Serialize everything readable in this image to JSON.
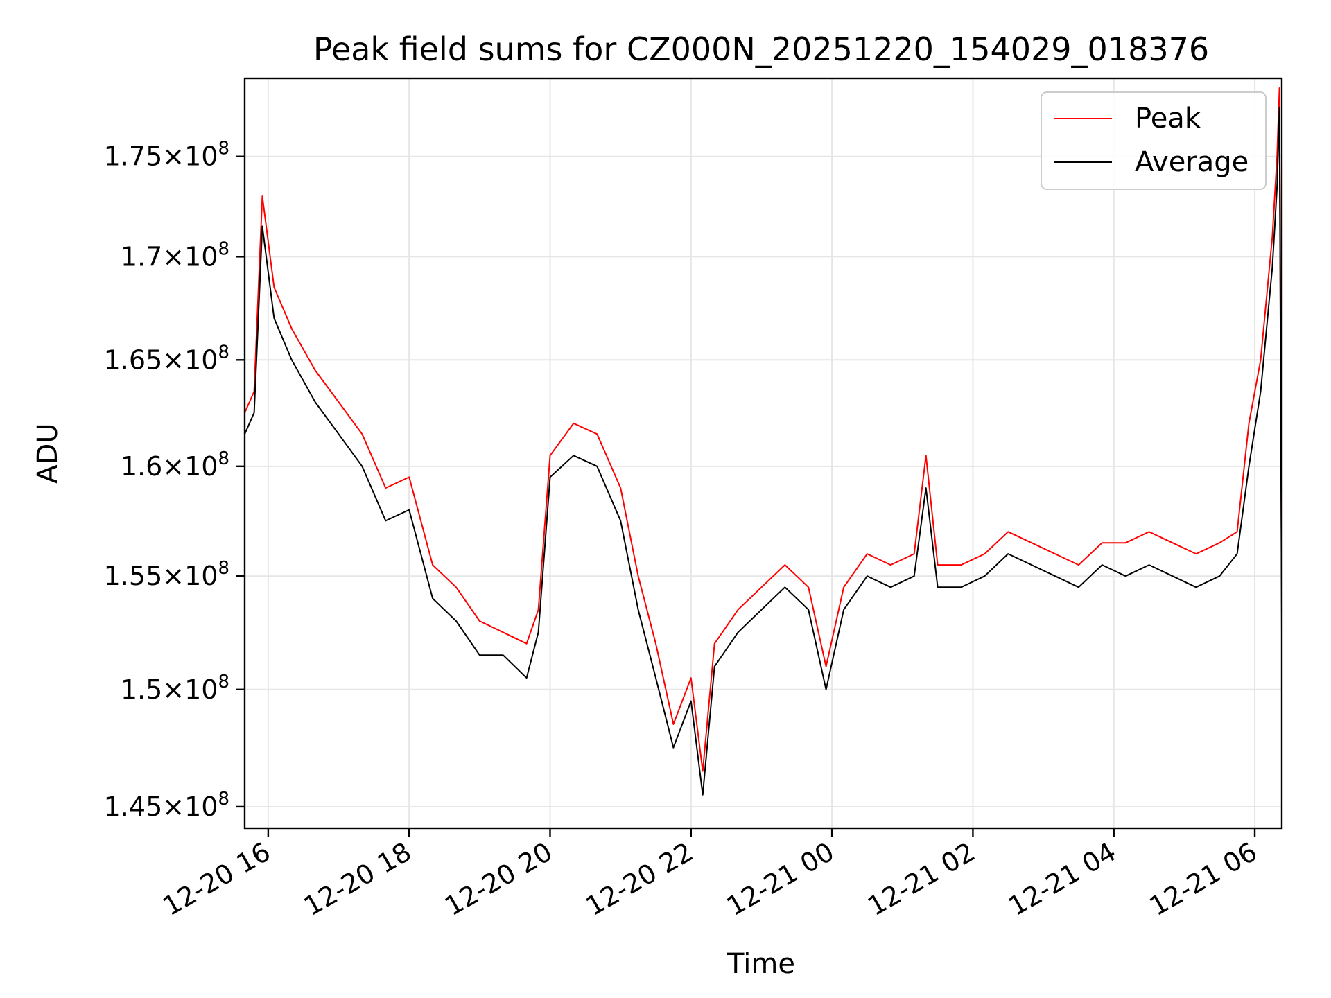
{
  "chart_data": {
    "type": "line",
    "title": "Peak field sums for CZ000N_20251220_154029_018376",
    "xlabel": "Time",
    "ylabel": "ADU",
    "x_range": [
      "2025-12-20 15:40",
      "2025-12-21 06:23"
    ],
    "ylim": [
      144100000,
      179000000
    ],
    "grid": true,
    "legend_position": "upper right",
    "x_ticks": [
      {
        "label": "12-20 16",
        "value": "2025-12-20 16:00"
      },
      {
        "label": "12-20 18",
        "value": "2025-12-20 18:00"
      },
      {
        "label": "12-20 20",
        "value": "2025-12-20 20:00"
      },
      {
        "label": "12-20 22",
        "value": "2025-12-20 22:00"
      },
      {
        "label": "12-21 00",
        "value": "2025-12-21 00:00"
      },
      {
        "label": "12-21 02",
        "value": "2025-12-21 02:00"
      },
      {
        "label": "12-21 04",
        "value": "2025-12-21 04:00"
      },
      {
        "label": "12-21 06",
        "value": "2025-12-21 06:00"
      }
    ],
    "y_ticks": [
      {
        "mantissa": "1.45",
        "exponent": "8",
        "value": 145000000
      },
      {
        "mantissa": "1.5",
        "exponent": "8",
        "value": 150000000
      },
      {
        "mantissa": "1.55",
        "exponent": "8",
        "value": 155000000
      },
      {
        "mantissa": "1.6",
        "exponent": "8",
        "value": 160000000
      },
      {
        "mantissa": "1.65",
        "exponent": "8",
        "value": 165000000
      },
      {
        "mantissa": "1.7",
        "exponent": "8",
        "value": 170000000
      },
      {
        "mantissa": "1.75",
        "exponent": "8",
        "value": 175000000
      }
    ],
    "series": [
      {
        "name": "Peak",
        "color": "#ff0000",
        "x": [
          "2025-12-20 15:40",
          "2025-12-20 15:48",
          "2025-12-20 15:55",
          "2025-12-20 16:05",
          "2025-12-20 16:20",
          "2025-12-20 16:40",
          "2025-12-20 17:00",
          "2025-12-20 17:20",
          "2025-12-20 17:40",
          "2025-12-20 18:00",
          "2025-12-20 18:20",
          "2025-12-20 18:40",
          "2025-12-20 19:00",
          "2025-12-20 19:20",
          "2025-12-20 19:40",
          "2025-12-20 19:50",
          "2025-12-20 20:00",
          "2025-12-20 20:20",
          "2025-12-20 20:40",
          "2025-12-20 21:00",
          "2025-12-20 21:15",
          "2025-12-20 21:30",
          "2025-12-20 21:45",
          "2025-12-20 22:00",
          "2025-12-20 22:10",
          "2025-12-20 22:20",
          "2025-12-20 22:40",
          "2025-12-20 23:00",
          "2025-12-20 23:20",
          "2025-12-20 23:40",
          "2025-12-20 23:55",
          "2025-12-21 00:10",
          "2025-12-21 00:30",
          "2025-12-21 00:50",
          "2025-12-21 01:10",
          "2025-12-21 01:20",
          "2025-12-21 01:30",
          "2025-12-21 01:50",
          "2025-12-21 02:10",
          "2025-12-21 02:30",
          "2025-12-21 02:50",
          "2025-12-21 03:10",
          "2025-12-21 03:30",
          "2025-12-21 03:50",
          "2025-12-21 04:10",
          "2025-12-21 04:30",
          "2025-12-21 04:50",
          "2025-12-21 05:10",
          "2025-12-21 05:30",
          "2025-12-21 05:45",
          "2025-12-21 05:55",
          "2025-12-21 06:05",
          "2025-12-21 06:15",
          "2025-12-21 06:19",
          "2025-12-21 06:21",
          "2025-12-21 06:23"
        ],
        "y": [
          162500000,
          163500000,
          173000000,
          168500000,
          166500000,
          164500000,
          163000000,
          161500000,
          159000000,
          159500000,
          155500000,
          154500000,
          153000000,
          152500000,
          152000000,
          153500000,
          160500000,
          162000000,
          161500000,
          159000000,
          155000000,
          152000000,
          148500000,
          150500000,
          146500000,
          152000000,
          153500000,
          154500000,
          155500000,
          154500000,
          151000000,
          154500000,
          156000000,
          155500000,
          156000000,
          160500000,
          155500000,
          155500000,
          156000000,
          157000000,
          156500000,
          156000000,
          155500000,
          156500000,
          156500000,
          157000000,
          156500000,
          156000000,
          156500000,
          157000000,
          162000000,
          165000000,
          171000000,
          175000000,
          178500000,
          153500000
        ]
      },
      {
        "name": "Average",
        "color": "#000000",
        "x": [
          "2025-12-20 15:40",
          "2025-12-20 15:48",
          "2025-12-20 15:55",
          "2025-12-20 16:05",
          "2025-12-20 16:20",
          "2025-12-20 16:40",
          "2025-12-20 17:00",
          "2025-12-20 17:20",
          "2025-12-20 17:40",
          "2025-12-20 18:00",
          "2025-12-20 18:20",
          "2025-12-20 18:40",
          "2025-12-20 19:00",
          "2025-12-20 19:20",
          "2025-12-20 19:40",
          "2025-12-20 19:50",
          "2025-12-20 20:00",
          "2025-12-20 20:20",
          "2025-12-20 20:40",
          "2025-12-20 21:00",
          "2025-12-20 21:15",
          "2025-12-20 21:30",
          "2025-12-20 21:45",
          "2025-12-20 22:00",
          "2025-12-20 22:10",
          "2025-12-20 22:20",
          "2025-12-20 22:40",
          "2025-12-20 23:00",
          "2025-12-20 23:20",
          "2025-12-20 23:40",
          "2025-12-20 23:55",
          "2025-12-21 00:10",
          "2025-12-21 00:30",
          "2025-12-21 00:50",
          "2025-12-21 01:10",
          "2025-12-21 01:20",
          "2025-12-21 01:30",
          "2025-12-21 01:50",
          "2025-12-21 02:10",
          "2025-12-21 02:30",
          "2025-12-21 02:50",
          "2025-12-21 03:10",
          "2025-12-21 03:30",
          "2025-12-21 03:50",
          "2025-12-21 04:10",
          "2025-12-21 04:30",
          "2025-12-21 04:50",
          "2025-12-21 05:10",
          "2025-12-21 05:30",
          "2025-12-21 05:45",
          "2025-12-21 05:55",
          "2025-12-21 06:05",
          "2025-12-21 06:15",
          "2025-12-21 06:19",
          "2025-12-21 06:21",
          "2025-12-21 06:23"
        ],
        "y": [
          161500000,
          162500000,
          171500000,
          167000000,
          165000000,
          163000000,
          161500000,
          160000000,
          157500000,
          158000000,
          154000000,
          153000000,
          151500000,
          151500000,
          150500000,
          152500000,
          159500000,
          160500000,
          160000000,
          157500000,
          153500000,
          150500000,
          147500000,
          149500000,
          145500000,
          151000000,
          152500000,
          153500000,
          154500000,
          153500000,
          150000000,
          153500000,
          155000000,
          154500000,
          155000000,
          159000000,
          154500000,
          154500000,
          155000000,
          156000000,
          155500000,
          155000000,
          154500000,
          155500000,
          155000000,
          155500000,
          155000000,
          154500000,
          155000000,
          156000000,
          160000000,
          163500000,
          169500000,
          173500000,
          177500000,
          152500000
        ]
      }
    ]
  }
}
